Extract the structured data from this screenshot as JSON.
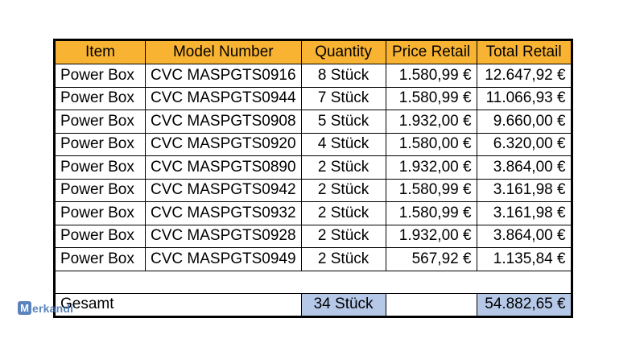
{
  "table": {
    "headers": [
      "Item",
      "Model Number",
      "Quantity",
      "Price Retail",
      "Total Retail"
    ],
    "rows": [
      [
        "Power Box",
        "CVC MASPGTS0916",
        "8 Stück",
        "1.580,99 €",
        "12.647,92 €"
      ],
      [
        "Power Box",
        "CVC MASPGTS0944",
        "7 Stück",
        "1.580,99 €",
        "11.066,93 €"
      ],
      [
        "Power Box",
        "CVC MASPGTS0908",
        "5 Stück",
        "1.932,00 €",
        "9.660,00 €"
      ],
      [
        "Power Box",
        "CVC MASPGTS0920",
        "4 Stück",
        "1.580,00 €",
        "6.320,00 €"
      ],
      [
        "Power Box",
        "CVC MASPGTS0890",
        "2 Stück",
        "1.932,00 €",
        "3.864,00 €"
      ],
      [
        "Power Box",
        "CVC MASPGTS0942",
        "2 Stück",
        "1.580,99 €",
        "3.161,98 €"
      ],
      [
        "Power Box",
        "CVC MASPGTS0932",
        "2 Stück",
        "1.580,99 €",
        "3.161,98 €"
      ],
      [
        "Power Box",
        "CVC MASPGTS0928",
        "2 Stück",
        "1.932,00 €",
        "3.864,00 €"
      ],
      [
        "Power Box",
        "CVC MASPGTS0949",
        "2 Stück",
        "567,92 €",
        "1.135,84 €"
      ]
    ],
    "total": {
      "label": "Gesamt",
      "quantity": "34 Stück",
      "amount": "54.882,65 €"
    }
  },
  "watermark": {
    "letter": "M",
    "text": "erkandi"
  },
  "colors": {
    "header_bg": "#f8b332",
    "total_highlight": "#b6c8e8",
    "watermark": "#3f6fb3"
  }
}
